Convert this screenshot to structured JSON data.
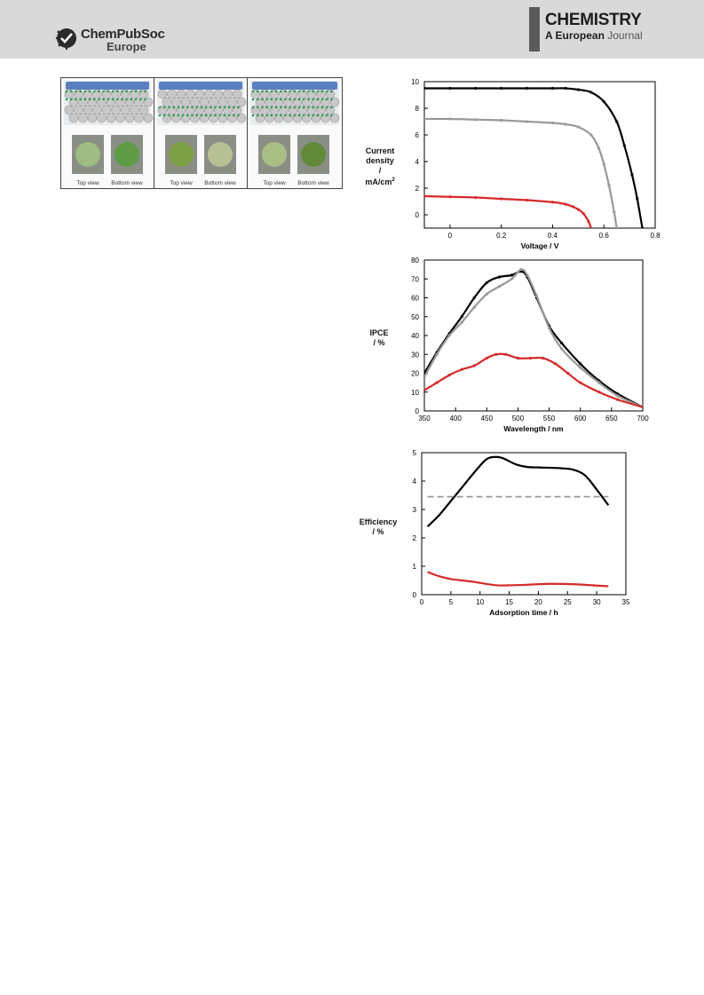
{
  "header": {
    "publisher_line1": "ChemPubSoc",
    "publisher_line2": "Europe",
    "journal_title": "CHEMISTRY",
    "journal_sub_a": "A European",
    "journal_sub_b": "Journal"
  },
  "scheme": {
    "captions": [
      "Top view",
      "Bottom view",
      "Top view",
      "Bottom view",
      "Top view",
      "Bottom view"
    ],
    "disc_colors": [
      "#9fbc82",
      "#5f9a45",
      "#7ea046",
      "#b8c095",
      "#a9bd85",
      "#62893a"
    ]
  },
  "colors": {
    "black": "#000000",
    "gray": "#999999",
    "red": "#d62a2a"
  },
  "chart_data": [
    {
      "type": "line",
      "title": "",
      "ylabel_lines": [
        "Current",
        "density",
        "/",
        "mA/cm"
      ],
      "ylabel_sup": "2",
      "xlabel": "Voltage / V",
      "xlim": [
        -0.1,
        0.8
      ],
      "ylim": [
        -1,
        10
      ],
      "xticks": [
        "0",
        "0.2",
        "0.4",
        "0.6",
        "0.8"
      ],
      "yticks": [
        "0",
        "2",
        "4",
        "6",
        "8",
        "10"
      ],
      "series": [
        {
          "color": "black",
          "x": [
            -0.1,
            0.0,
            0.1,
            0.2,
            0.3,
            0.4,
            0.45,
            0.5,
            0.55,
            0.6,
            0.65,
            0.68,
            0.71,
            0.73,
            0.75
          ],
          "y": [
            9.5,
            9.5,
            9.5,
            9.5,
            9.5,
            9.5,
            9.5,
            9.4,
            9.2,
            8.5,
            7.0,
            5.2,
            3.0,
            1.2,
            -1.0
          ]
        },
        {
          "color": "gray",
          "x": [
            -0.1,
            0.0,
            0.1,
            0.2,
            0.3,
            0.4,
            0.45,
            0.5,
            0.55,
            0.58,
            0.6,
            0.62,
            0.64,
            0.65
          ],
          "y": [
            7.2,
            7.2,
            7.15,
            7.1,
            7.0,
            6.9,
            6.8,
            6.6,
            6.0,
            5.0,
            3.8,
            2.2,
            0.2,
            -1.0
          ]
        },
        {
          "color": "red",
          "x": [
            -0.1,
            0.0,
            0.1,
            0.2,
            0.3,
            0.4,
            0.45,
            0.48,
            0.5,
            0.52,
            0.54,
            0.55
          ],
          "y": [
            1.4,
            1.35,
            1.3,
            1.2,
            1.1,
            0.95,
            0.8,
            0.6,
            0.4,
            0.1,
            -0.5,
            -1.0
          ]
        }
      ]
    },
    {
      "type": "line",
      "title": "",
      "ylabel_lines": [
        "IPCE",
        "/ %"
      ],
      "xlabel": "Wavelength / nm",
      "xlim": [
        350,
        700
      ],
      "ylim": [
        0,
        80
      ],
      "xticks": [
        "350",
        "400",
        "450",
        "500",
        "550",
        "600",
        "650",
        "700"
      ],
      "yticks": [
        "0",
        "10",
        "20",
        "30",
        "40",
        "50",
        "60",
        "70",
        "80"
      ],
      "series": [
        {
          "color": "black",
          "x": [
            350,
            370,
            390,
            410,
            430,
            450,
            470,
            490,
            505,
            515,
            530,
            550,
            570,
            600,
            630,
            660,
            700
          ],
          "y": [
            20,
            31,
            41,
            50,
            60,
            68,
            71,
            72,
            74,
            71,
            60,
            45,
            36,
            25,
            16,
            9,
            2
          ]
        },
        {
          "color": "gray",
          "x": [
            350,
            370,
            390,
            410,
            430,
            450,
            470,
            490,
            505,
            515,
            530,
            550,
            570,
            600,
            630,
            660,
            700
          ],
          "y": [
            18,
            30,
            40,
            47,
            55,
            62,
            66,
            70,
            75,
            72,
            61,
            44,
            33,
            23,
            15,
            8,
            2
          ]
        },
        {
          "color": "red",
          "x": [
            350,
            370,
            390,
            410,
            430,
            450,
            465,
            480,
            500,
            520,
            540,
            560,
            580,
            600,
            630,
            660,
            700
          ],
          "y": [
            11,
            15,
            19,
            22,
            24,
            28,
            30,
            30,
            28,
            28,
            28,
            25,
            20,
            15,
            10,
            6,
            2
          ]
        }
      ]
    },
    {
      "type": "line",
      "title": "",
      "ylabel_lines": [
        "Efficiency",
        "/ %"
      ],
      "xlabel": "Adsorption time / h",
      "xlim": [
        0,
        35
      ],
      "ylim": [
        0,
        5
      ],
      "xticks": [
        "0",
        "5",
        "10",
        "15",
        "20",
        "25",
        "30",
        "35"
      ],
      "yticks": [
        "0",
        "1",
        "2",
        "3",
        "4",
        "5"
      ],
      "series": [
        {
          "color": "black",
          "x": [
            1,
            3,
            5,
            7,
            9,
            11,
            12.5,
            14,
            16,
            18,
            20,
            22,
            24,
            26,
            28,
            30,
            32
          ],
          "y": [
            2.4,
            2.8,
            3.3,
            3.8,
            4.3,
            4.75,
            4.85,
            4.8,
            4.6,
            4.5,
            4.48,
            4.47,
            4.45,
            4.4,
            4.2,
            3.7,
            3.15
          ]
        },
        {
          "color": "gray",
          "dashed": true,
          "x": [
            1,
            32
          ],
          "y": [
            3.45,
            3.45
          ]
        },
        {
          "color": "red",
          "x": [
            1,
            3,
            5,
            7,
            9,
            11,
            13,
            15,
            18,
            21,
            24,
            27,
            30,
            32
          ],
          "y": [
            0.8,
            0.65,
            0.55,
            0.5,
            0.45,
            0.38,
            0.33,
            0.33,
            0.35,
            0.38,
            0.38,
            0.36,
            0.32,
            0.3
          ]
        }
      ]
    }
  ]
}
